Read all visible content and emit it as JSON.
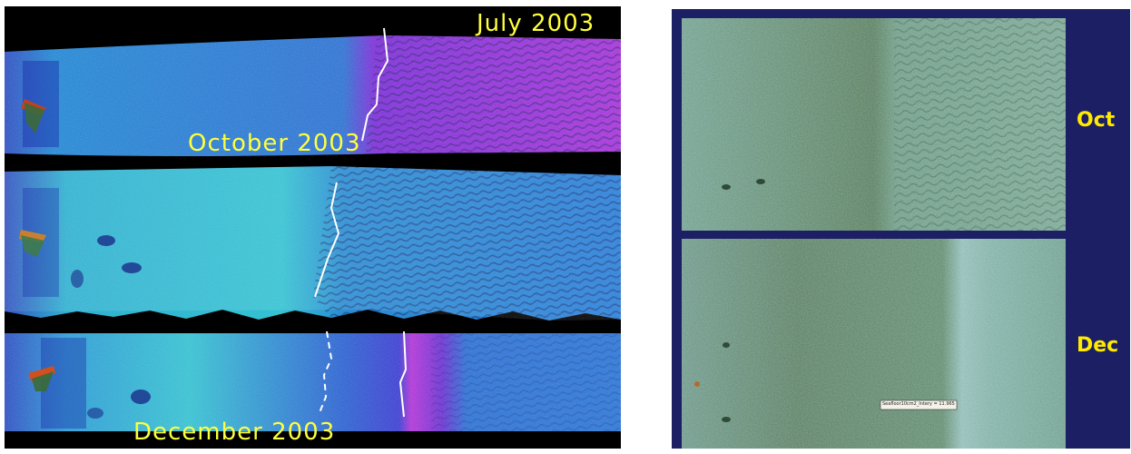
{
  "left_panel": {
    "labels": {
      "top": "July 2003",
      "middle": "October 2003",
      "bottom": "December 2003"
    },
    "colors": {
      "background": "#000000",
      "label": "#ffff3c",
      "boundary_line": "#ffffff"
    }
  },
  "right_panel": {
    "labels": {
      "top": "Oct",
      "bottom": "Dec"
    },
    "inset_note": "Seafloor10cm2_Intery = 11.965",
    "colors": {
      "background": "#1c1f63",
      "label": "#ffea00"
    }
  }
}
